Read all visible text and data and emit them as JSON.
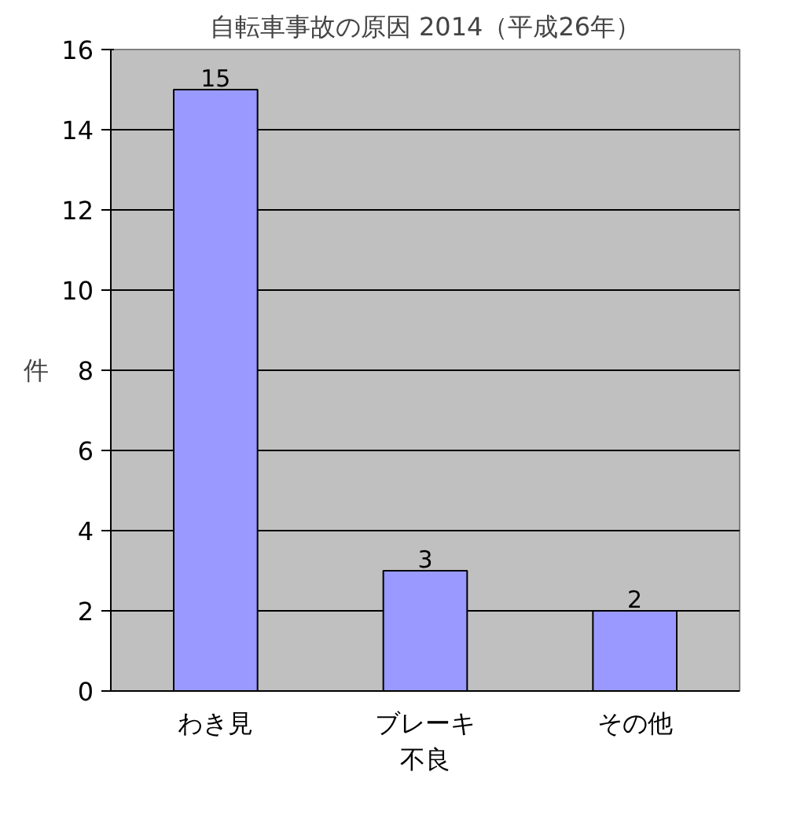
{
  "chart_data": {
    "type": "bar",
    "title": "自転車事故の原因 2014（平成26年）",
    "ylabel": "件",
    "categories": [
      "わき見",
      "ブレーキ不良",
      "その他"
    ],
    "values": [
      15,
      3,
      2
    ],
    "color": "#9999ff",
    "ylim": [
      0,
      16
    ],
    "yticks": [
      0,
      2,
      4,
      6,
      8,
      10,
      12,
      14,
      16
    ],
    "grid": "y",
    "data_labels": true
  }
}
